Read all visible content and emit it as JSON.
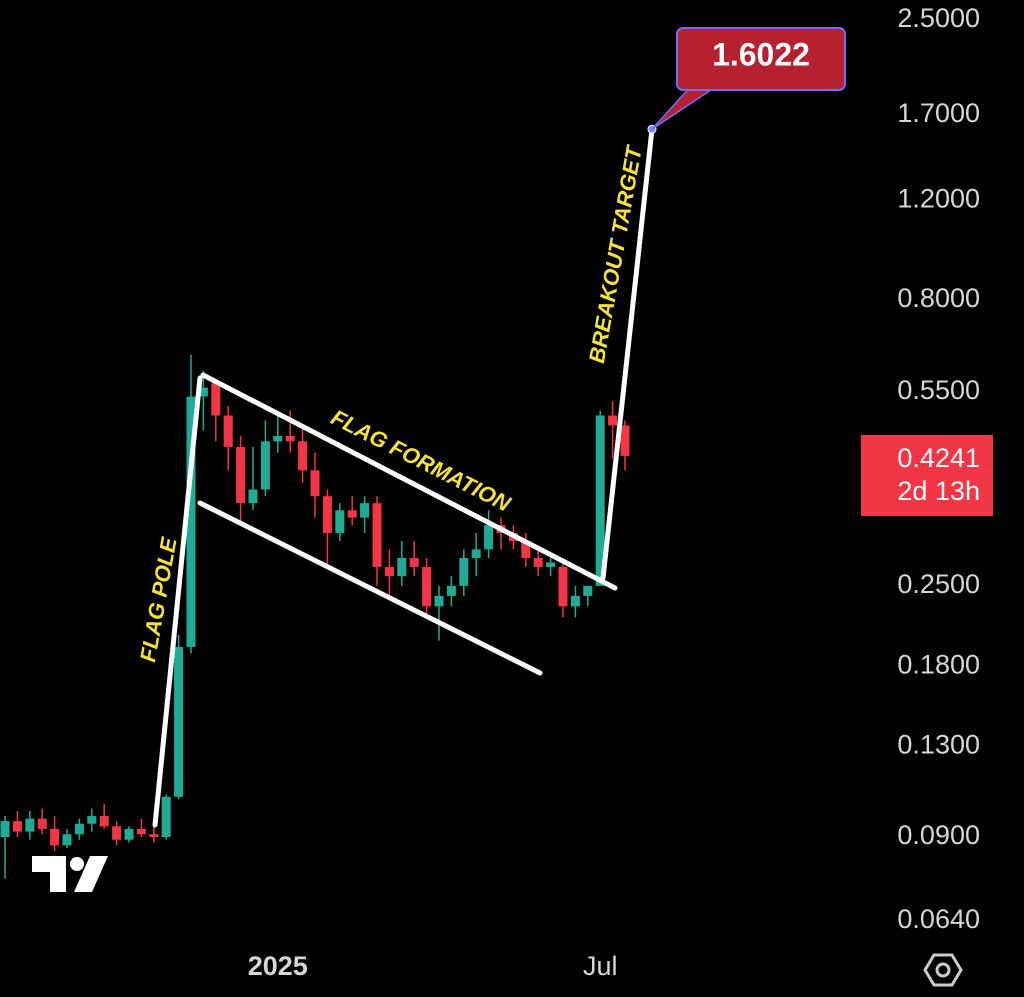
{
  "chart_data": {
    "type": "candlestick",
    "log": true,
    "grid": false,
    "up_color": "#22ab94",
    "down_color": "#f23645",
    "categories": [
      null,
      null,
      null,
      null,
      null,
      null,
      null,
      null,
      null,
      null,
      null,
      null,
      null,
      null,
      null,
      null,
      null,
      null,
      null,
      null,
      null,
      null,
      "2025",
      null,
      null,
      null,
      null,
      null,
      null,
      null,
      null,
      null,
      null,
      null,
      null,
      null,
      null,
      null,
      null,
      null,
      null,
      null,
      null,
      null,
      null,
      null,
      null,
      null,
      "Jul",
      null,
      null
    ],
    "open": [
      0.09,
      0.096,
      0.092,
      0.097,
      0.093,
      0.087,
      0.091,
      0.095,
      0.098,
      0.094,
      0.089,
      0.093,
      0.091,
      0.09,
      0.106,
      0.195,
      0.54,
      0.57,
      0.5,
      0.44,
      0.35,
      0.37,
      0.45,
      0.46,
      0.45,
      0.4,
      0.36,
      0.31,
      0.34,
      0.33,
      0.35,
      0.27,
      0.26,
      0.28,
      0.27,
      0.23,
      0.24,
      0.25,
      0.28,
      0.29,
      0.32,
      0.31,
      0.3,
      0.28,
      0.27,
      0.27,
      0.23,
      0.24,
      0.25,
      0.5,
      0.48
    ],
    "high": [
      0.098,
      0.1,
      0.1,
      0.101,
      0.098,
      0.093,
      0.097,
      0.101,
      0.103,
      0.096,
      0.094,
      0.097,
      0.095,
      0.107,
      0.205,
      0.64,
      0.6,
      0.58,
      0.52,
      0.46,
      0.44,
      0.49,
      0.5,
      0.51,
      0.48,
      0.43,
      0.37,
      0.35,
      0.36,
      0.36,
      0.36,
      0.29,
      0.3,
      0.3,
      0.28,
      0.25,
      0.26,
      0.29,
      0.31,
      0.34,
      0.33,
      0.32,
      0.31,
      0.29,
      0.28,
      0.28,
      0.25,
      0.25,
      0.51,
      0.53,
      0.49
    ],
    "low": [
      0.076,
      0.09,
      0.089,
      0.091,
      0.085,
      0.086,
      0.089,
      0.092,
      0.093,
      0.087,
      0.088,
      0.09,
      0.088,
      0.089,
      0.105,
      0.19,
      0.47,
      0.45,
      0.4,
      0.32,
      0.34,
      0.36,
      0.43,
      0.43,
      0.38,
      0.33,
      0.27,
      0.3,
      0.32,
      0.31,
      0.25,
      0.24,
      0.25,
      0.26,
      0.22,
      0.2,
      0.23,
      0.24,
      0.26,
      0.28,
      0.29,
      0.29,
      0.27,
      0.26,
      0.26,
      0.22,
      0.22,
      0.23,
      0.25,
      0.42,
      0.4
    ],
    "close": [
      0.096,
      0.092,
      0.097,
      0.093,
      0.087,
      0.091,
      0.095,
      0.098,
      0.094,
      0.089,
      0.093,
      0.091,
      0.09,
      0.106,
      0.195,
      0.54,
      0.56,
      0.5,
      0.44,
      0.35,
      0.37,
      0.45,
      0.46,
      0.45,
      0.4,
      0.36,
      0.31,
      0.34,
      0.33,
      0.35,
      0.27,
      0.26,
      0.28,
      0.27,
      0.23,
      0.24,
      0.25,
      0.28,
      0.29,
      0.32,
      0.31,
      0.3,
      0.28,
      0.27,
      0.275,
      0.23,
      0.24,
      0.25,
      0.5,
      0.48,
      0.4241
    ],
    "ylim": [
      0.058,
      2.71
    ],
    "yticks": [
      {
        "value": 2.5,
        "label": "2.5000"
      },
      {
        "value": 1.7,
        "label": "1.7000"
      },
      {
        "value": 1.2,
        "label": "1.2000"
      },
      {
        "value": 0.8,
        "label": "0.8000"
      },
      {
        "value": 0.55,
        "label": "0.5500"
      },
      {
        "value": 0.25,
        "label": "0.2500"
      },
      {
        "value": 0.18,
        "label": "0.1800"
      },
      {
        "value": 0.13,
        "label": "0.1300"
      },
      {
        "value": 0.09,
        "label": "0.0900"
      },
      {
        "value": 0.064,
        "label": "0.0640"
      }
    ],
    "last_price": 0.4241,
    "countdown": "2d 13h",
    "target": {
      "value": 1.6022,
      "label": "1.6022"
    },
    "annotations": [
      "FLAG POLE",
      "FLAG FORMATION",
      "BREAKOUT TARGET"
    ]
  }
}
